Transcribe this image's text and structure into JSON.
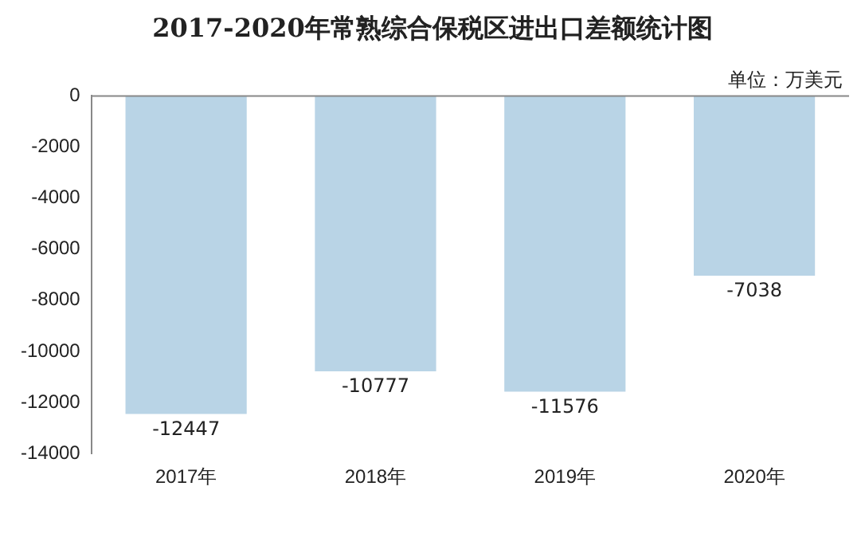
{
  "chart_data": {
    "type": "bar",
    "title": "2017-2020年常熟综合保税区进出口差额统计图",
    "annotations": [
      "单位：万美元"
    ],
    "categories": [
      "2017年",
      "2018年",
      "2019年",
      "2020年"
    ],
    "values": [
      -12447,
      -10777,
      -11576,
      -7038
    ],
    "color": "#b9d4e6",
    "ylim": [
      -14000,
      0
    ],
    "yticks": [
      -14000,
      -12000,
      -10000,
      -8000,
      -6000,
      -4000,
      -2000,
      0
    ],
    "grid": false,
    "legend": false,
    "data_labels": true
  }
}
